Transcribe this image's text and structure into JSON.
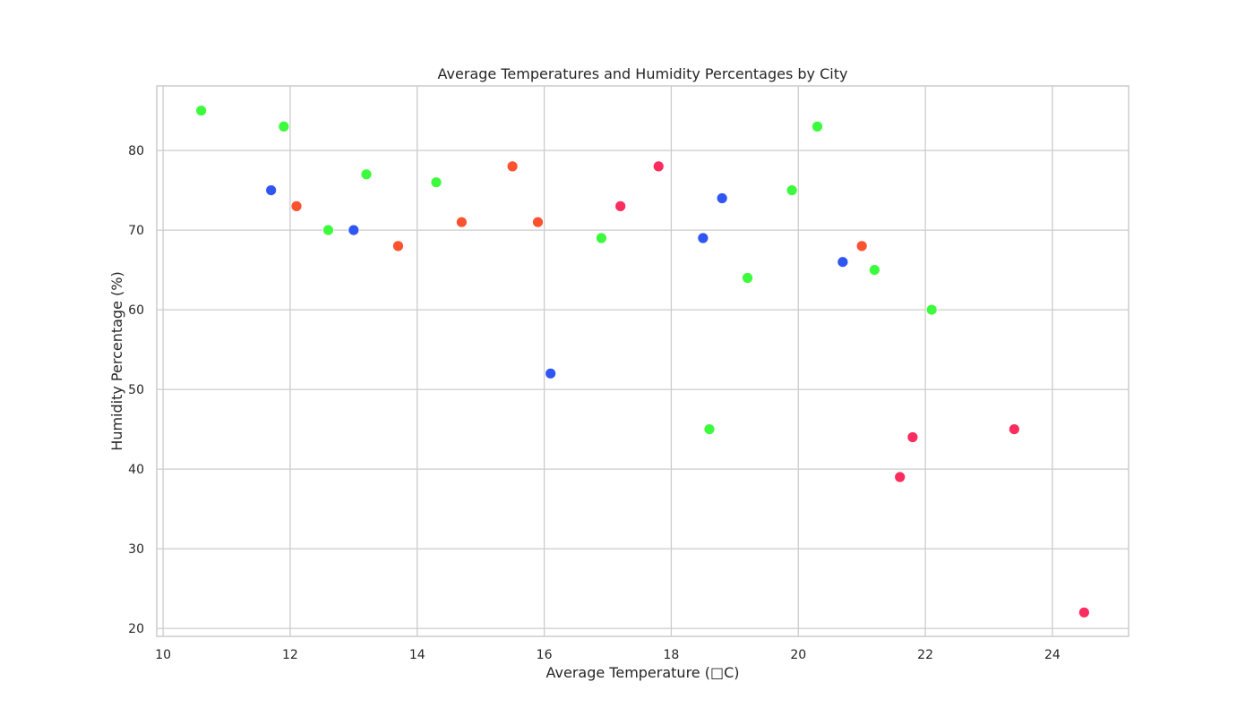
{
  "chart_data": {
    "type": "scatter",
    "title": "Average Temperatures and Humidity Percentages by City",
    "xlabel": "Average Temperature (□C)",
    "ylabel": "Humidity Percentage (%)",
    "xlim": [
      9.9,
      25.2
    ],
    "ylim": [
      19,
      88.1
    ],
    "xticks": [
      10,
      12,
      14,
      16,
      18,
      20,
      22,
      24
    ],
    "yticks": [
      20,
      30,
      40,
      50,
      60,
      70,
      80
    ],
    "grid": true,
    "legend": "none",
    "colors": {
      "green": "#3cfb3c",
      "blue": "#2f56f2",
      "orange": "#fb5230",
      "red": "#fb2c5e"
    },
    "points": [
      {
        "x": 10.6,
        "y": 85,
        "color": "green"
      },
      {
        "x": 11.7,
        "y": 75,
        "color": "blue"
      },
      {
        "x": 11.9,
        "y": 83,
        "color": "green"
      },
      {
        "x": 12.1,
        "y": 73,
        "color": "orange"
      },
      {
        "x": 12.6,
        "y": 70,
        "color": "green"
      },
      {
        "x": 13.0,
        "y": 70,
        "color": "blue"
      },
      {
        "x": 13.2,
        "y": 77,
        "color": "green"
      },
      {
        "x": 13.7,
        "y": 68,
        "color": "orange"
      },
      {
        "x": 14.3,
        "y": 76,
        "color": "green"
      },
      {
        "x": 14.7,
        "y": 71,
        "color": "orange"
      },
      {
        "x": 15.5,
        "y": 78,
        "color": "orange"
      },
      {
        "x": 15.9,
        "y": 71,
        "color": "orange"
      },
      {
        "x": 16.1,
        "y": 52,
        "color": "blue"
      },
      {
        "x": 16.9,
        "y": 69,
        "color": "green"
      },
      {
        "x": 17.2,
        "y": 73,
        "color": "red"
      },
      {
        "x": 17.8,
        "y": 78,
        "color": "red"
      },
      {
        "x": 18.5,
        "y": 69,
        "color": "blue"
      },
      {
        "x": 18.6,
        "y": 45,
        "color": "green"
      },
      {
        "x": 18.8,
        "y": 74,
        "color": "blue"
      },
      {
        "x": 19.2,
        "y": 64,
        "color": "green"
      },
      {
        "x": 19.9,
        "y": 75,
        "color": "green"
      },
      {
        "x": 20.3,
        "y": 83,
        "color": "green"
      },
      {
        "x": 20.7,
        "y": 66,
        "color": "blue"
      },
      {
        "x": 21.0,
        "y": 68,
        "color": "orange"
      },
      {
        "x": 21.2,
        "y": 65,
        "color": "green"
      },
      {
        "x": 21.6,
        "y": 39,
        "color": "red"
      },
      {
        "x": 21.8,
        "y": 44,
        "color": "red"
      },
      {
        "x": 22.1,
        "y": 60,
        "color": "green"
      },
      {
        "x": 23.4,
        "y": 45,
        "color": "red"
      },
      {
        "x": 24.5,
        "y": 22,
        "color": "red"
      }
    ]
  }
}
